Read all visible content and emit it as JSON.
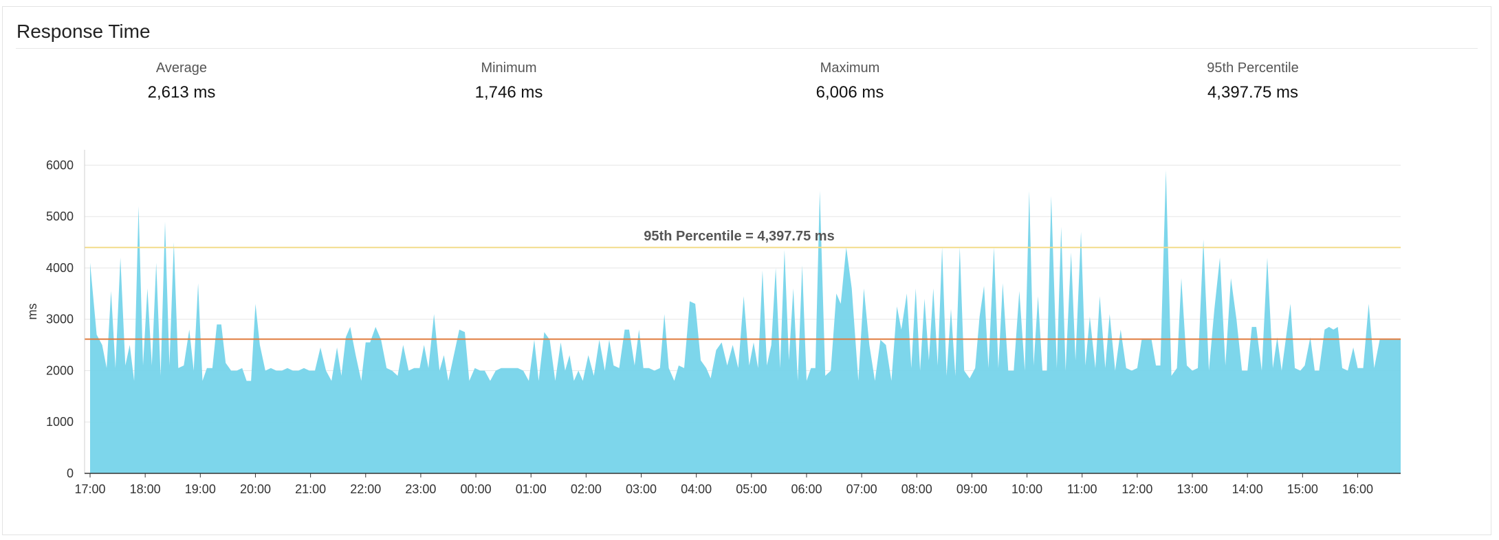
{
  "panel": {
    "title": "Response Time"
  },
  "stats": [
    {
      "label": "Average",
      "value": "2,613 ms"
    },
    {
      "label": "Minimum",
      "value": "1,746 ms"
    },
    {
      "label": "Maximum",
      "value": "6,006 ms"
    },
    {
      "label": "95th Percentile",
      "value": "4,397.75 ms"
    }
  ],
  "colors": {
    "area": "#76d4ea",
    "percentile_line": "#f2dc8a",
    "average_line": "#e07b3d",
    "grid": "#e6e6e6"
  },
  "chart_data": {
    "type": "area",
    "ylabel": "ms",
    "ylim": [
      0,
      6300
    ],
    "yticks": [
      0,
      1000,
      2000,
      3000,
      4000,
      5000,
      6000
    ],
    "xticks": [
      "17:00",
      "18:00",
      "19:00",
      "20:00",
      "21:00",
      "22:00",
      "23:00",
      "00:00",
      "01:00",
      "02:00",
      "03:00",
      "04:00",
      "05:00",
      "06:00",
      "07:00",
      "08:00",
      "09:00",
      "10:00",
      "11:00",
      "12:00",
      "13:00",
      "14:00",
      "15:00",
      "16:00"
    ],
    "xlim_hours": [
      -0.1,
      23.78
    ],
    "grid": true,
    "reference_lines": [
      {
        "label": "95th Percentile = 4,397.75 ms",
        "value": 4397.75
      },
      {
        "label": "",
        "value": 2613
      }
    ],
    "peaks": [
      [
        0.0,
        4100
      ],
      [
        0.12,
        2700
      ],
      [
        0.22,
        2500
      ],
      [
        0.3,
        2050
      ],
      [
        0.38,
        3550
      ],
      [
        0.46,
        2050
      ],
      [
        0.55,
        4200
      ],
      [
        0.64,
        2100
      ],
      [
        0.72,
        2500
      ],
      [
        0.8,
        1800
      ],
      [
        0.88,
        5200
      ],
      [
        0.96,
        2100
      ],
      [
        1.04,
        3600
      ],
      [
        1.12,
        2100
      ],
      [
        1.2,
        4100
      ],
      [
        1.28,
        1900
      ],
      [
        1.36,
        4900
      ],
      [
        1.44,
        2100
      ],
      [
        1.52,
        4500
      ],
      [
        1.6,
        2050
      ],
      [
        1.7,
        2100
      ],
      [
        1.8,
        2800
      ],
      [
        1.88,
        2000
      ],
      [
        1.96,
        3700
      ],
      [
        2.04,
        1800
      ],
      [
        2.12,
        2050
      ],
      [
        2.22,
        2050
      ],
      [
        2.3,
        2900
      ],
      [
        2.38,
        2900
      ],
      [
        2.46,
        2150
      ],
      [
        2.56,
        2000
      ],
      [
        2.66,
        2000
      ],
      [
        2.76,
        2050
      ],
      [
        2.84,
        1800
      ],
      [
        2.92,
        1800
      ],
      [
        3.0,
        3300
      ],
      [
        3.08,
        2500
      ],
      [
        3.18,
        2000
      ],
      [
        3.28,
        2050
      ],
      [
        3.38,
        2000
      ],
      [
        3.48,
        2000
      ],
      [
        3.58,
        2050
      ],
      [
        3.68,
        2000
      ],
      [
        3.78,
        2000
      ],
      [
        3.88,
        2050
      ],
      [
        3.98,
        2000
      ],
      [
        4.08,
        2000
      ],
      [
        4.18,
        2450
      ],
      [
        4.28,
        2000
      ],
      [
        4.38,
        1800
      ],
      [
        4.48,
        2450
      ],
      [
        4.56,
        1900
      ],
      [
        4.64,
        2650
      ],
      [
        4.72,
        2850
      ],
      [
        4.82,
        2300
      ],
      [
        4.92,
        1800
      ],
      [
        5.0,
        2550
      ],
      [
        5.08,
        2550
      ],
      [
        5.18,
        2850
      ],
      [
        5.28,
        2600
      ],
      [
        5.38,
        2050
      ],
      [
        5.48,
        2000
      ],
      [
        5.58,
        1900
      ],
      [
        5.68,
        2500
      ],
      [
        5.78,
        2000
      ],
      [
        5.88,
        2050
      ],
      [
        5.98,
        2050
      ],
      [
        6.06,
        2500
      ],
      [
        6.14,
        2050
      ],
      [
        6.24,
        3100
      ],
      [
        6.34,
        2000
      ],
      [
        6.42,
        2300
      ],
      [
        6.5,
        1800
      ],
      [
        6.6,
        2300
      ],
      [
        6.7,
        2800
      ],
      [
        6.8,
        2750
      ],
      [
        6.88,
        1800
      ],
      [
        6.98,
        2050
      ],
      [
        7.08,
        2000
      ],
      [
        7.16,
        2000
      ],
      [
        7.26,
        1800
      ],
      [
        7.36,
        2000
      ],
      [
        7.46,
        2050
      ],
      [
        7.56,
        2050
      ],
      [
        7.66,
        2050
      ],
      [
        7.76,
        2050
      ],
      [
        7.86,
        2000
      ],
      [
        7.96,
        1800
      ],
      [
        8.06,
        2600
      ],
      [
        8.14,
        1800
      ],
      [
        8.24,
        2750
      ],
      [
        8.34,
        2600
      ],
      [
        8.44,
        1800
      ],
      [
        8.54,
        2550
      ],
      [
        8.62,
        2000
      ],
      [
        8.7,
        2300
      ],
      [
        8.78,
        1800
      ],
      [
        8.86,
        2000
      ],
      [
        8.94,
        1800
      ],
      [
        9.04,
        2300
      ],
      [
        9.14,
        1900
      ],
      [
        9.24,
        2600
      ],
      [
        9.34,
        2000
      ],
      [
        9.42,
        2600
      ],
      [
        9.5,
        2100
      ],
      [
        9.6,
        2050
      ],
      [
        9.7,
        2800
      ],
      [
        9.78,
        2800
      ],
      [
        9.88,
        2100
      ],
      [
        9.96,
        2800
      ],
      [
        10.04,
        2050
      ],
      [
        10.14,
        2050
      ],
      [
        10.24,
        2000
      ],
      [
        10.34,
        2050
      ],
      [
        10.42,
        3100
      ],
      [
        10.5,
        2050
      ],
      [
        10.6,
        1800
      ],
      [
        10.68,
        2100
      ],
      [
        10.78,
        2050
      ],
      [
        10.88,
        3350
      ],
      [
        10.98,
        3300
      ],
      [
        11.08,
        2200
      ],
      [
        11.18,
        2050
      ],
      [
        11.26,
        1850
      ],
      [
        11.36,
        2400
      ],
      [
        11.46,
        2550
      ],
      [
        11.56,
        2100
      ],
      [
        11.66,
        2500
      ],
      [
        11.76,
        2050
      ],
      [
        11.86,
        3450
      ],
      [
        11.96,
        2100
      ],
      [
        12.04,
        2550
      ],
      [
        12.12,
        2050
      ],
      [
        12.2,
        3950
      ],
      [
        12.28,
        2100
      ],
      [
        12.36,
        2500
      ],
      [
        12.44,
        4000
      ],
      [
        12.52,
        2050
      ],
      [
        12.6,
        4350
      ],
      [
        12.68,
        2200
      ],
      [
        12.76,
        3600
      ],
      [
        12.84,
        1800
      ],
      [
        12.92,
        4050
      ],
      [
        13.0,
        1800
      ],
      [
        13.08,
        2050
      ],
      [
        13.16,
        2050
      ],
      [
        13.24,
        5500
      ],
      [
        13.34,
        1900
      ],
      [
        13.44,
        2000
      ],
      [
        13.54,
        3500
      ],
      [
        13.62,
        3300
      ],
      [
        13.72,
        4400
      ],
      [
        13.82,
        3600
      ],
      [
        13.94,
        1800
      ],
      [
        14.04,
        3600
      ],
      [
        14.14,
        2500
      ],
      [
        14.24,
        1800
      ],
      [
        14.34,
        2600
      ],
      [
        14.44,
        2500
      ],
      [
        14.54,
        1800
      ],
      [
        14.64,
        3250
      ],
      [
        14.72,
        2800
      ],
      [
        14.82,
        3500
      ],
      [
        14.9,
        2050
      ],
      [
        14.98,
        3600
      ],
      [
        15.06,
        2000
      ],
      [
        15.14,
        3400
      ],
      [
        15.22,
        2200
      ],
      [
        15.3,
        3600
      ],
      [
        15.38,
        2100
      ],
      [
        15.46,
        4400
      ],
      [
        15.54,
        1900
      ],
      [
        15.62,
        3200
      ],
      [
        15.7,
        1900
      ],
      [
        15.78,
        4400
      ],
      [
        15.86,
        2000
      ],
      [
        15.96,
        1850
      ],
      [
        16.06,
        2050
      ],
      [
        16.14,
        3050
      ],
      [
        16.22,
        3650
      ],
      [
        16.3,
        2050
      ],
      [
        16.4,
        4400
      ],
      [
        16.48,
        2050
      ],
      [
        16.56,
        3700
      ],
      [
        16.66,
        2000
      ],
      [
        16.76,
        2000
      ],
      [
        16.86,
        3550
      ],
      [
        16.96,
        2000
      ],
      [
        17.04,
        5500
      ],
      [
        17.12,
        2100
      ],
      [
        17.2,
        3450
      ],
      [
        17.28,
        2000
      ],
      [
        17.36,
        2000
      ],
      [
        17.44,
        5400
      ],
      [
        17.54,
        2050
      ],
      [
        17.62,
        4800
      ],
      [
        17.7,
        2000
      ],
      [
        17.8,
        4300
      ],
      [
        17.88,
        2200
      ],
      [
        17.98,
        4700
      ],
      [
        18.06,
        2100
      ],
      [
        18.14,
        3050
      ],
      [
        18.24,
        2050
      ],
      [
        18.32,
        3450
      ],
      [
        18.42,
        2050
      ],
      [
        18.5,
        3100
      ],
      [
        18.6,
        2000
      ],
      [
        18.7,
        2800
      ],
      [
        18.8,
        2050
      ],
      [
        18.9,
        2000
      ],
      [
        19.0,
        2050
      ],
      [
        19.08,
        2600
      ],
      [
        19.18,
        2600
      ],
      [
        19.26,
        2600
      ],
      [
        19.34,
        2100
      ],
      [
        19.42,
        2100
      ],
      [
        19.52,
        5900
      ],
      [
        19.62,
        1900
      ],
      [
        19.72,
        2050
      ],
      [
        19.8,
        3800
      ],
      [
        19.9,
        2100
      ],
      [
        20.0,
        2000
      ],
      [
        20.1,
        2050
      ],
      [
        20.2,
        4550
      ],
      [
        20.3,
        2000
      ],
      [
        20.4,
        3200
      ],
      [
        20.5,
        4200
      ],
      [
        20.6,
        2100
      ],
      [
        20.7,
        3800
      ],
      [
        20.8,
        3000
      ],
      [
        20.9,
        2000
      ],
      [
        21.0,
        2000
      ],
      [
        21.08,
        2850
      ],
      [
        21.16,
        2850
      ],
      [
        21.26,
        2000
      ],
      [
        21.36,
        4200
      ],
      [
        21.46,
        2050
      ],
      [
        21.54,
        2650
      ],
      [
        21.62,
        2000
      ],
      [
        21.7,
        2650
      ],
      [
        21.78,
        3300
      ],
      [
        21.86,
        2050
      ],
      [
        21.96,
        2000
      ],
      [
        22.04,
        2100
      ],
      [
        22.14,
        2650
      ],
      [
        22.22,
        2000
      ],
      [
        22.3,
        2000
      ],
      [
        22.4,
        2800
      ],
      [
        22.48,
        2850
      ],
      [
        22.56,
        2800
      ],
      [
        22.64,
        2850
      ],
      [
        22.72,
        2050
      ],
      [
        22.82,
        2000
      ],
      [
        22.92,
        2450
      ],
      [
        23.0,
        2050
      ],
      [
        23.1,
        2050
      ],
      [
        23.2,
        3300
      ],
      [
        23.3,
        2050
      ],
      [
        23.4,
        2600
      ]
    ]
  }
}
